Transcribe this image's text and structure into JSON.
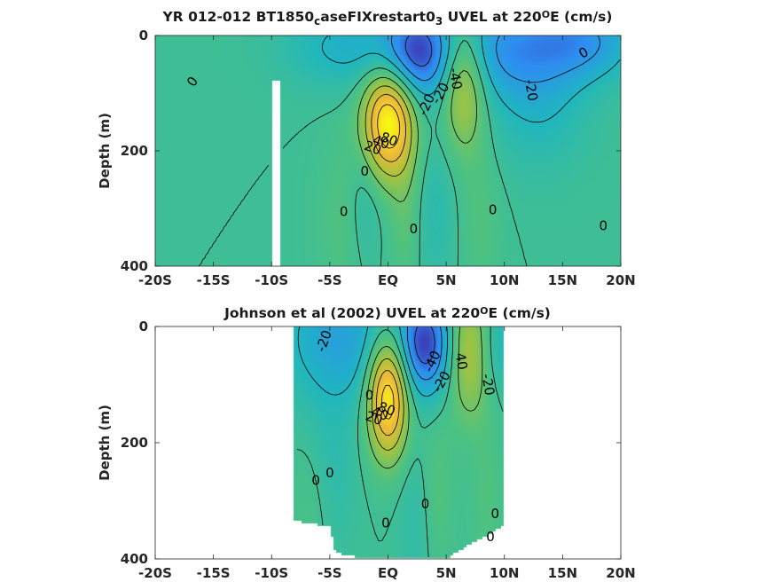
{
  "chart_data": [
    {
      "type": "heatmap",
      "subtype": "filled-contour",
      "title_parts": [
        "YR 012-012 BT1850",
        "c",
        "aseFIXrestart0",
        "3",
        " UVEL at 220",
        "O",
        "E (cm/s)"
      ],
      "ylabel": "Depth (m)",
      "xlim": [
        -20,
        20
      ],
      "ylim": [
        0,
        400
      ],
      "y_reversed": true,
      "xticks": [
        -20,
        -15,
        -10,
        -5,
        0,
        5,
        10,
        15,
        20
      ],
      "xtick_labels": [
        "-20S",
        "-15S",
        "-10S",
        "-5S",
        "EQ",
        "5N",
        "10N",
        "15N",
        "20N"
      ],
      "yticks": [
        0,
        200,
        400
      ],
      "ytick_labels": [
        "0",
        "200",
        "400"
      ],
      "data_extent": [
        -20,
        20
      ],
      "gap_x": [
        -10,
        -9.2
      ],
      "gap_depth": [
        80,
        400
      ],
      "contour_interval": 20,
      "colormap": [
        "#3e26a8",
        "#2e8df2",
        "#1fb6c0",
        "#4fc27f",
        "#a9c33b",
        "#f1ba3a",
        "#f9fb0e"
      ],
      "color_range": [
        -80,
        100
      ],
      "features": [
        {
          "kind": "gauss",
          "x": 0,
          "depth": 150,
          "sx": 1.5,
          "sd": 65,
          "amp": 100
        },
        {
          "kind": "gauss",
          "x": 6.5,
          "depth": 80,
          "sx": 1.3,
          "sd": 80,
          "amp": 50
        },
        {
          "kind": "gauss",
          "x": 2.5,
          "depth": 30,
          "sx": 2.0,
          "sd": 55,
          "amp": -60
        },
        {
          "kind": "gauss",
          "x": 10.5,
          "depth": 20,
          "sx": 4.0,
          "sd": 60,
          "amp": -40
        },
        {
          "kind": "gauss",
          "x": 17,
          "depth": 10,
          "sx": 3.0,
          "sd": 45,
          "amp": -35
        },
        {
          "kind": "gauss",
          "x": -3,
          "depth": 20,
          "sx": 4.0,
          "sd": 50,
          "amp": -25
        },
        {
          "kind": "gauss",
          "x": 13,
          "depth": 120,
          "sx": 3.0,
          "sd": 80,
          "amp": -18
        },
        {
          "kind": "gauss",
          "x": 4,
          "depth": 300,
          "sx": 1.2,
          "sd": 100,
          "amp": -12
        },
        {
          "kind": "gauss",
          "x": -4,
          "depth": 320,
          "sx": 1.5,
          "sd": 100,
          "amp": 10
        },
        {
          "kind": "gauss",
          "x": -2,
          "depth": 280,
          "sx": 1.0,
          "sd": 80,
          "amp": -12
        },
        {
          "kind": "gauss",
          "x": 1.5,
          "depth": 300,
          "sx": 1.0,
          "sd": 100,
          "amp": 14
        },
        {
          "kind": "gauss",
          "x": 8,
          "depth": 320,
          "sx": 1.2,
          "sd": 100,
          "amp": 10
        }
      ],
      "labels": [
        {
          "text": "0",
          "x": -16.8,
          "depth": 80,
          "angle": -55
        },
        {
          "text": "-40",
          "x": 5.8,
          "depth": 75,
          "angle": 80
        },
        {
          "text": "-20",
          "x": 4.5,
          "depth": 100,
          "angle": -60
        },
        {
          "text": "-20",
          "x": 3.3,
          "depth": 120,
          "angle": -65
        },
        {
          "text": "-20",
          "x": 12.3,
          "depth": 95,
          "angle": 80
        },
        {
          "text": "0",
          "x": 16.8,
          "depth": 30,
          "angle": -30
        },
        {
          "text": "40",
          "x": -0.6,
          "depth": 185,
          "angle": 20
        },
        {
          "text": "20",
          "x": -1.3,
          "depth": 195,
          "angle": 20
        },
        {
          "text": "80",
          "x": 0.1,
          "depth": 180,
          "angle": 20
        },
        {
          "text": "0",
          "x": -2,
          "depth": 235,
          "angle": 0
        },
        {
          "text": "0",
          "x": -3.8,
          "depth": 305,
          "angle": 0
        },
        {
          "text": "0",
          "x": 2.2,
          "depth": 335,
          "angle": 0
        },
        {
          "text": "0",
          "x": 9,
          "depth": 302,
          "angle": 0
        },
        {
          "text": "0",
          "x": 18.5,
          "depth": 330,
          "angle": 0
        }
      ]
    },
    {
      "type": "heatmap",
      "subtype": "filled-contour",
      "title_parts": [
        "Johnson et al (2002) UVEL at 220",
        "O",
        "E (cm/s)"
      ],
      "ylabel": "Depth (m)",
      "xlim": [
        -20,
        20
      ],
      "ylim": [
        0,
        400
      ],
      "y_reversed": true,
      "xticks": [
        -20,
        -15,
        -10,
        -5,
        0,
        5,
        10,
        15,
        20
      ],
      "xtick_labels": [
        "-20S",
        "-15S",
        "-10S",
        "-5S",
        "EQ",
        "5N",
        "10N",
        "15N",
        "20N"
      ],
      "yticks": [
        0,
        200,
        400
      ],
      "ytick_labels": [
        "0",
        "200",
        "400"
      ],
      "data_extent": [
        -8,
        10
      ],
      "contour_interval": 20,
      "colormap": [
        "#3e26a8",
        "#2e8df2",
        "#1fb6c0",
        "#4fc27f",
        "#a9c33b",
        "#f1ba3a",
        "#f9fb0e"
      ],
      "color_range": [
        -80,
        100
      ],
      "bottom_profile": [
        [
          -8,
          335
        ],
        [
          -5,
          345
        ],
        [
          -4.5,
          390
        ],
        [
          -2,
          400
        ],
        [
          5,
          400
        ],
        [
          7.5,
          370
        ],
        [
          9,
          355
        ],
        [
          10,
          340
        ]
      ],
      "features": [
        {
          "kind": "gauss",
          "x": 0,
          "depth": 120,
          "sx": 1.2,
          "sd": 70,
          "amp": 100
        },
        {
          "kind": "gauss",
          "x": 7,
          "depth": 40,
          "sx": 1.3,
          "sd": 80,
          "amp": 50
        },
        {
          "kind": "gauss",
          "x": 3.2,
          "depth": 30,
          "sx": 1.6,
          "sd": 60,
          "amp": -70
        },
        {
          "kind": "gauss",
          "x": -4,
          "depth": 20,
          "sx": 3.5,
          "sd": 80,
          "amp": -35
        },
        {
          "kind": "gauss",
          "x": 9.5,
          "depth": 30,
          "sx": 2.0,
          "sd": 60,
          "amp": -20
        },
        {
          "kind": "gauss",
          "x": -5,
          "depth": 250,
          "sx": 1.5,
          "sd": 90,
          "amp": -12
        },
        {
          "kind": "gauss",
          "x": -6.5,
          "depth": 300,
          "sx": 1.2,
          "sd": 80,
          "amp": 10
        },
        {
          "kind": "gauss",
          "x": 4,
          "depth": 280,
          "sx": 1.2,
          "sd": 100,
          "amp": 12
        },
        {
          "kind": "gauss",
          "x": 2.5,
          "depth": 320,
          "sx": 1.0,
          "sd": 100,
          "amp": -12
        },
        {
          "kind": "gauss",
          "x": 8.5,
          "depth": 300,
          "sx": 1.0,
          "sd": 100,
          "amp": 10
        }
      ],
      "labels": [
        {
          "text": "-20",
          "x": -5.5,
          "depth": 25,
          "angle": -70
        },
        {
          "text": "-40",
          "x": 3.8,
          "depth": 60,
          "angle": -65
        },
        {
          "text": "-20",
          "x": 4.6,
          "depth": 95,
          "angle": -60
        },
        {
          "text": "40",
          "x": 6.3,
          "depth": 60,
          "angle": 80
        },
        {
          "text": "-20",
          "x": 8.6,
          "depth": 100,
          "angle": 80
        },
        {
          "text": "0",
          "x": -1.6,
          "depth": 118,
          "angle": 0
        },
        {
          "text": "40",
          "x": -0.7,
          "depth": 150,
          "angle": 20
        },
        {
          "text": "20",
          "x": -1.2,
          "depth": 158,
          "angle": 20
        },
        {
          "text": "80",
          "x": -0.1,
          "depth": 142,
          "angle": 20
        },
        {
          "text": "0",
          "x": -6.2,
          "depth": 265,
          "angle": 0
        },
        {
          "text": "0",
          "x": -5,
          "depth": 252,
          "angle": 0
        },
        {
          "text": "0",
          "x": 3.2,
          "depth": 305,
          "angle": 0
        },
        {
          "text": "0",
          "x": -0.2,
          "depth": 338,
          "angle": 0
        },
        {
          "text": "0",
          "x": 9.2,
          "depth": 322,
          "angle": 0
        },
        {
          "text": "0",
          "x": 8.8,
          "depth": 362,
          "angle": 0
        }
      ]
    }
  ]
}
